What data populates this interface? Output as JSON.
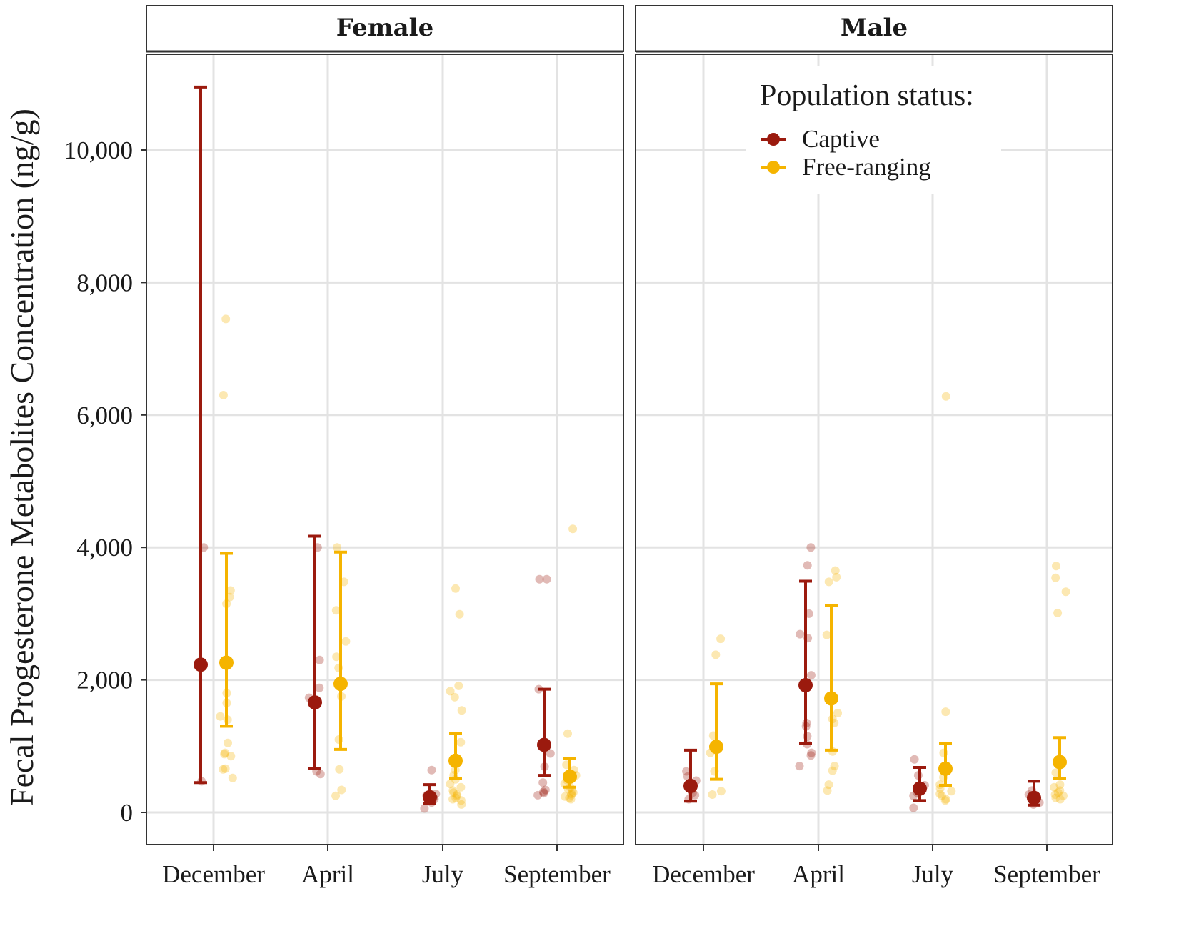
{
  "chart_data": {
    "type": "scatter",
    "subtype": "point-range with jittered raw observations, faceted",
    "ylabel": "Fecal Progesterone Metabolites Concentration (ng/g)",
    "xlabel": "",
    "ylim": [
      -400,
      11500
    ],
    "yticks": [
      0,
      2000,
      4000,
      6000,
      8000,
      10000
    ],
    "ytick_labels": [
      "0",
      "2,000",
      "4,000",
      "6,000",
      "8,000",
      "10,000"
    ],
    "categories": [
      "December",
      "April",
      "July",
      "September"
    ],
    "facets": [
      "Female",
      "Male"
    ],
    "legend": {
      "title": "Population status:",
      "position": "top-right of Male panel",
      "entries": [
        {
          "name": "Captive",
          "color": "#9b1a0e"
        },
        {
          "name": "Free-ranging",
          "color": "#f5b400"
        }
      ]
    },
    "summary": [
      {
        "facet": "Female",
        "month": "December",
        "status": "Captive",
        "mean": 2230,
        "lower": 450,
        "upper": 10950
      },
      {
        "facet": "Female",
        "month": "December",
        "status": "Free-ranging",
        "mean": 2260,
        "lower": 1300,
        "upper": 3910
      },
      {
        "facet": "Female",
        "month": "April",
        "status": "Captive",
        "mean": 1660,
        "lower": 660,
        "upper": 4170
      },
      {
        "facet": "Female",
        "month": "April",
        "status": "Free-ranging",
        "mean": 1940,
        "lower": 950,
        "upper": 3930
      },
      {
        "facet": "Female",
        "month": "July",
        "status": "Captive",
        "mean": 230,
        "lower": 130,
        "upper": 420
      },
      {
        "facet": "Female",
        "month": "July",
        "status": "Free-ranging",
        "mean": 780,
        "lower": 510,
        "upper": 1190
      },
      {
        "facet": "Female",
        "month": "September",
        "status": "Captive",
        "mean": 1020,
        "lower": 560,
        "upper": 1860
      },
      {
        "facet": "Female",
        "month": "September",
        "status": "Free-ranging",
        "mean": 540,
        "lower": 380,
        "upper": 810
      },
      {
        "facet": "Male",
        "month": "December",
        "status": "Captive",
        "mean": 400,
        "lower": 170,
        "upper": 940
      },
      {
        "facet": "Male",
        "month": "December",
        "status": "Free-ranging",
        "mean": 990,
        "lower": 500,
        "upper": 1940
      },
      {
        "facet": "Male",
        "month": "April",
        "status": "Captive",
        "mean": 1920,
        "lower": 1040,
        "upper": 3490
      },
      {
        "facet": "Male",
        "month": "April",
        "status": "Free-ranging",
        "mean": 1720,
        "lower": 940,
        "upper": 3120
      },
      {
        "facet": "Male",
        "month": "July",
        "status": "Captive",
        "mean": 360,
        "lower": 180,
        "upper": 680
      },
      {
        "facet": "Male",
        "month": "July",
        "status": "Free-ranging",
        "mean": 660,
        "lower": 410,
        "upper": 1040
      },
      {
        "facet": "Male",
        "month": "September",
        "status": "Captive",
        "mean": 220,
        "lower": 110,
        "upper": 470
      },
      {
        "facet": "Male",
        "month": "September",
        "status": "Free-ranging",
        "mean": 760,
        "lower": 510,
        "upper": 1130
      }
    ],
    "observations": [
      {
        "facet": "Female",
        "month": "December",
        "status": "Captive",
        "values": [
          4000,
          470
        ]
      },
      {
        "facet": "Female",
        "month": "December",
        "status": "Free-ranging",
        "values": [
          7450,
          6300,
          3350,
          3250,
          3150,
          1800,
          1650,
          1450,
          1400,
          1050,
          900,
          850,
          880,
          660,
          650,
          520
        ]
      },
      {
        "facet": "Female",
        "month": "April",
        "status": "Captive",
        "values": [
          4000,
          2300,
          1880,
          1730,
          620,
          580
        ]
      },
      {
        "facet": "Female",
        "month": "April",
        "status": "Free-ranging",
        "values": [
          4000,
          3480,
          3050,
          2580,
          2350,
          2180,
          1750,
          1100,
          650,
          340,
          250
        ]
      },
      {
        "facet": "Female",
        "month": "July",
        "status": "Captive",
        "values": [
          640,
          280,
          260,
          240,
          220,
          200,
          150,
          60
        ]
      },
      {
        "facet": "Female",
        "month": "July",
        "status": "Free-ranging",
        "values": [
          3380,
          2990,
          1910,
          1830,
          1740,
          1540,
          1060,
          640,
          560,
          500,
          430,
          380,
          330,
          300,
          270,
          250,
          220,
          200,
          180,
          120
        ]
      },
      {
        "facet": "Female",
        "month": "September",
        "status": "Captive",
        "values": [
          3520,
          3520,
          1860,
          890,
          690,
          450,
          340,
          310,
          290,
          260
        ]
      },
      {
        "facet": "Female",
        "month": "September",
        "status": "Free-ranging",
        "values": [
          4280,
          1190,
          720,
          640,
          560,
          490,
          430,
          380,
          350,
          320,
          300,
          280,
          260,
          240,
          220,
          200
        ]
      },
      {
        "facet": "Male",
        "month": "December",
        "status": "Captive",
        "values": [
          620,
          540,
          480,
          350,
          300,
          260,
          200
        ]
      },
      {
        "facet": "Male",
        "month": "December",
        "status": "Free-ranging",
        "values": [
          2620,
          2380,
          1160,
          960,
          900,
          620,
          320,
          270
        ]
      },
      {
        "facet": "Male",
        "month": "April",
        "status": "Captive",
        "values": [
          4000,
          3730,
          3000,
          2690,
          2630,
          2070,
          1350,
          1300,
          1150,
          1030,
          900,
          860,
          700
        ]
      },
      {
        "facet": "Male",
        "month": "April",
        "status": "Free-ranging",
        "values": [
          3650,
          3550,
          3480,
          2680,
          1500,
          1410,
          1350,
          920,
          700,
          630,
          420,
          330
        ]
      },
      {
        "facet": "Male",
        "month": "July",
        "status": "Captive",
        "values": [
          800,
          560,
          410,
          370,
          300,
          250,
          70
        ]
      },
      {
        "facet": "Male",
        "month": "July",
        "status": "Free-ranging",
        "values": [
          6280,
          1520,
          900,
          530,
          420,
          360,
          320,
          280,
          250,
          200,
          180
        ]
      },
      {
        "facet": "Male",
        "month": "September",
        "status": "Captive",
        "values": [
          330,
          270,
          220,
          150,
          120
        ]
      },
      {
        "facet": "Male",
        "month": "September",
        "status": "Free-ranging",
        "values": [
          3720,
          3540,
          3330,
          3010,
          600,
          420,
          380,
          330,
          300,
          270,
          250,
          220,
          200
        ]
      }
    ]
  }
}
